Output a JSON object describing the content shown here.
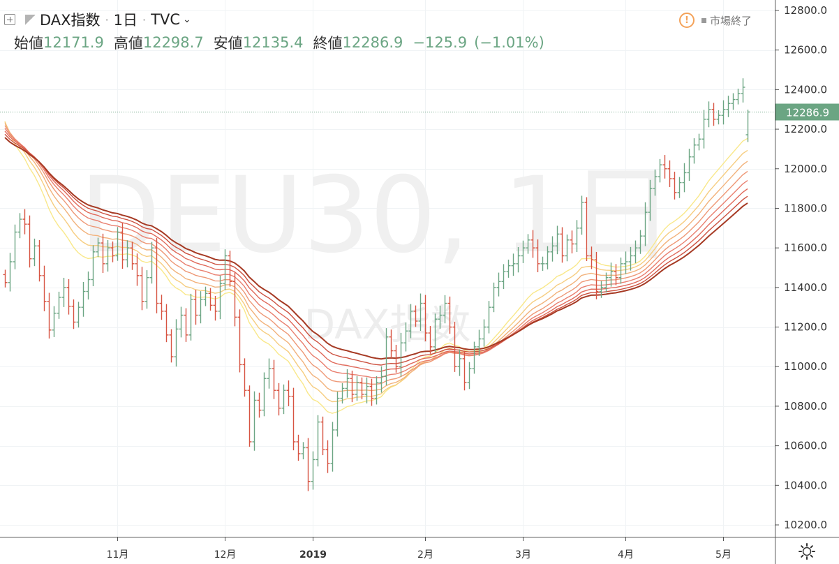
{
  "header": {
    "symbol": "DAX指数",
    "interval": "1日",
    "exchange": "TVC",
    "ohlc": {
      "open_label": "始値",
      "open": "12171.9",
      "high_label": "高値",
      "high": "12298.7",
      "low_label": "安値",
      "low": "12135.4",
      "close_label": "終値",
      "close": "12286.9",
      "change": "−125.9",
      "change_pct": "(−1.01%)"
    },
    "status": "市場終了"
  },
  "watermark": {
    "line1": "DEU30, 1日",
    "line2": "DAX指数"
  },
  "chart_data": {
    "type": "ohlc",
    "y_ticks": [
      10200,
      10400,
      10600,
      10800,
      11000,
      11200,
      11400,
      11600,
      11800,
      12000,
      12200,
      12400,
      12600,
      12800
    ],
    "ylim": [
      10140,
      12850
    ],
    "x_ticks": [
      {
        "label": "11月",
        "index": 23
      },
      {
        "label": "12月",
        "index": 45
      },
      {
        "label": "2019",
        "index": 63
      },
      {
        "label": "2月",
        "index": 86
      },
      {
        "label": "3月",
        "index": 106
      },
      {
        "label": "4月",
        "index": 127
      },
      {
        "label": "5月",
        "index": 147
      }
    ],
    "last_price": "12286.9",
    "colors": {
      "up": "#6ba583",
      "down": "#d75442",
      "last_line": "#6ba583"
    },
    "ribbon_colors": [
      "#f9e88a",
      "#f6cd80",
      "#f2b27b",
      "#ee9876",
      "#e97f6f",
      "#e06a5b",
      "#cc5140",
      "#a63a24"
    ],
    "ribbon_periods": [
      20,
      25,
      30,
      35,
      40,
      45,
      50,
      55
    ],
    "closes": [
      11425,
      11530,
      11680,
      11745,
      11720,
      11545,
      11610,
      11460,
      11330,
      11185,
      11270,
      11350,
      11400,
      11305,
      11225,
      11300,
      11380,
      11440,
      11580,
      11625,
      11520,
      11600,
      11560,
      11680,
      11540,
      11600,
      11520,
      11460,
      11330,
      11450,
      11600,
      11320,
      11280,
      11160,
      11050,
      11190,
      11260,
      11160,
      11340,
      11260,
      11340,
      11370,
      11310,
      11280,
      11420,
      11560,
      11430,
      11250,
      11010,
      10880,
      10620,
      10830,
      10780,
      10940,
      10990,
      10880,
      10790,
      10880,
      10850,
      10620,
      10560,
      10590,
      10420,
      10530,
      10720,
      10580,
      10510,
      10680,
      10840,
      10890,
      10940,
      10860,
      10920,
      10860,
      10900,
      10840,
      10920,
      10950,
      11150,
      11080,
      11000,
      11120,
      11180,
      11280,
      11230,
      11320,
      11170,
      11100,
      11240,
      11260,
      11320,
      11200,
      11000,
      11040,
      10920,
      10990,
      11100,
      11140,
      11200,
      11300,
      11400,
      11430,
      11480,
      11510,
      11520,
      11560,
      11600,
      11640,
      11600,
      11520,
      11520,
      11580,
      11610,
      11670,
      11560,
      11640,
      11620,
      11700,
      11830,
      11560,
      11540,
      11380,
      11400,
      11450,
      11480,
      11450,
      11520,
      11530,
      11560,
      11600,
      11660,
      11780,
      11900,
      11960,
      12020,
      12000,
      11950,
      11880,
      11930,
      11980,
      12060,
      12120,
      12150,
      12250,
      12300,
      12250,
      12270,
      12300,
      12330,
      12350,
      12380,
      12412,
      12286.9
    ]
  }
}
